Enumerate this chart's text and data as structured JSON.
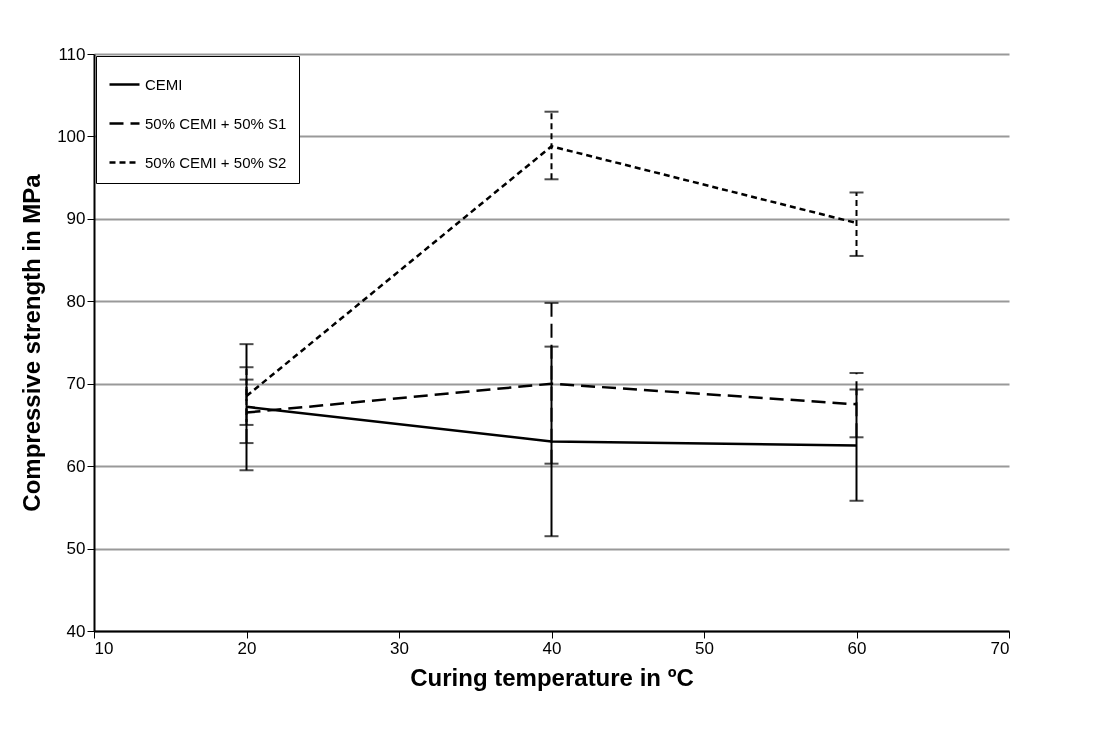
{
  "chart_data": {
    "type": "line",
    "xlabel": "Curing temperature in ºC",
    "ylabel": "Compressive strength in MPa",
    "x": [
      20,
      40,
      60
    ],
    "series": [
      {
        "name": "CEMI",
        "color": "#000000",
        "line_style": "solid",
        "values": [
          67.2,
          63,
          62.5
        ],
        "errors": [
          [
            59.5,
            74.8
          ],
          [
            51.5,
            74.5
          ],
          [
            55.8,
            69.3
          ]
        ]
      },
      {
        "name": "50% CEMI + 50% S1",
        "color": "#000000",
        "line_style": "dashed",
        "values": [
          66.5,
          70,
          67.5
        ],
        "errors": [
          [
            62.8,
            70.5
          ],
          [
            60.3,
            79.8
          ],
          [
            63.5,
            71.3
          ]
        ]
      },
      {
        "name": "50% CEMI + 50% S2",
        "color": "#000000",
        "line_style": "dotted",
        "values": [
          68.5,
          98.8,
          89.5
        ],
        "errors": [
          [
            65,
            72
          ],
          [
            94.8,
            103
          ],
          [
            85.5,
            93.2
          ]
        ]
      }
    ],
    "xlim": [
      10,
      70
    ],
    "xticks": [
      10,
      20,
      30,
      40,
      50,
      60,
      70
    ],
    "ylim": [
      40,
      110
    ],
    "yticks": [
      40,
      50,
      60,
      70,
      80,
      90,
      100,
      110
    ],
    "grid": "y",
    "legend": "top left",
    "marker": "none"
  }
}
